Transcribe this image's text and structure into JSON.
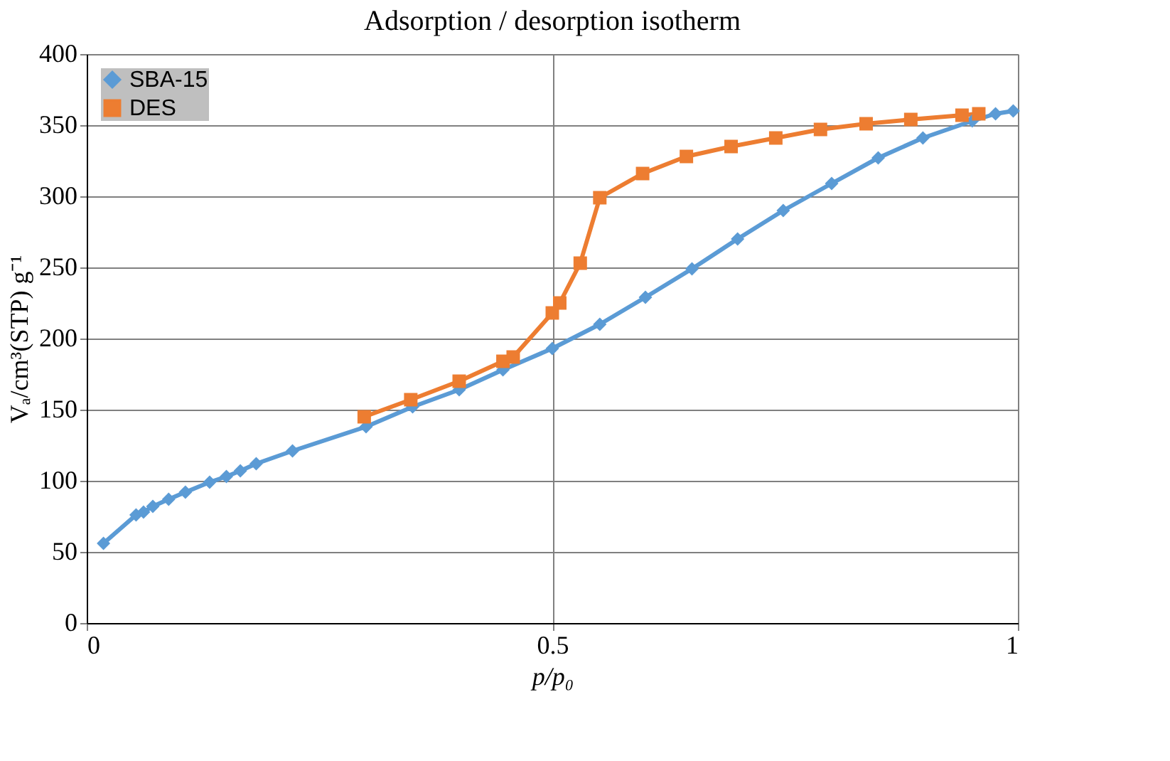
{
  "chart_data": {
    "type": "line",
    "title": "Adsorption / desorption isotherm",
    "xlabel": "p/p₀",
    "ylabel": "Vₐ/cm³(STP) g⁻¹",
    "xlim": [
      0,
      1
    ],
    "xticks": [
      0,
      0.5,
      1
    ],
    "ylim": [
      0,
      400
    ],
    "yticks": [
      0,
      50,
      100,
      150,
      200,
      250,
      300,
      350,
      400
    ],
    "grid": true,
    "legend": "top left",
    "line_style": "solid",
    "series": [
      {
        "name": "SBA-15",
        "color": "#5b9bd5",
        "marker": "diamond",
        "x": [
          0.018,
          0.053,
          0.061,
          0.071,
          0.088,
          0.106,
          0.132,
          0.15,
          0.165,
          0.182,
          0.221,
          0.3,
          0.35,
          0.4,
          0.447,
          0.5,
          0.551,
          0.6,
          0.65,
          0.699,
          0.748,
          0.8,
          0.85,
          0.898,
          0.951,
          0.976,
          0.995
        ],
        "values": [
          56,
          76,
          78,
          82,
          87,
          92,
          99,
          103,
          107,
          112,
          121,
          138,
          152,
          164,
          178,
          193,
          210,
          229,
          249,
          270,
          290,
          309,
          327,
          341,
          353,
          358,
          360
        ]
      },
      {
        "name": "DES",
        "color": "#ed7d31",
        "marker": "square",
        "x": [
          0.298,
          0.348,
          0.4,
          0.447,
          0.458,
          0.5,
          0.508,
          0.53,
          0.551,
          0.597,
          0.644,
          0.692,
          0.74,
          0.788,
          0.837,
          0.885,
          0.94,
          0.958
        ],
        "values": [
          145,
          157,
          170,
          184,
          187,
          218,
          225,
          253,
          299,
          316,
          328,
          335,
          341,
          347,
          351,
          354,
          357,
          358
        ]
      }
    ]
  }
}
